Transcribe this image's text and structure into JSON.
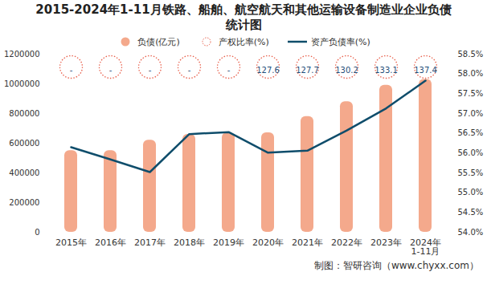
{
  "chart_data": {
    "type": "bar",
    "title": "2015-2024年1-11月铁路、船舶、航空航天和其他运输设备制造业企业负债统计图",
    "caption": "制图：智研咨询（www.chyxx.com）",
    "categories": [
      "2015年",
      "2016年",
      "2017年",
      "2018年",
      "2019年",
      "2020年",
      "2021年",
      "2022年",
      "2023年",
      "2024年\n1-11月"
    ],
    "series": [
      {
        "name": "负债(亿元)",
        "type": "bar",
        "color": "#f4a98c",
        "values": [
          550000,
          550000,
          620000,
          660000,
          670000,
          670000,
          780000,
          880000,
          990000,
          1030000
        ]
      },
      {
        "name": "产权比率(%)",
        "type": "scatter",
        "marker": "circle",
        "line_style": "dotted",
        "color": "#e8604c",
        "data_labels": true,
        "values": [
          null,
          null,
          null,
          null,
          null,
          127.6,
          127.7,
          130.2,
          133.1,
          137.4
        ],
        "value_labels": [
          "-",
          "-",
          "-",
          "-",
          "-",
          "127.6",
          "127.7",
          "130.2",
          "133.1",
          "137.4"
        ]
      },
      {
        "name": "资产负债率(%)",
        "type": "line",
        "axis": "y2",
        "color": "#0f4d6b",
        "values": [
          56.15,
          55.84,
          55.52,
          56.48,
          56.53,
          56.01,
          56.06,
          56.57,
          57.13,
          57.83
        ]
      }
    ],
    "ylim": [
      0,
      1200000
    ],
    "yticks": [
      0,
      200000,
      400000,
      600000,
      800000,
      1000000,
      1200000
    ],
    "y2lim": [
      54,
      58.5
    ],
    "y2ticks": [
      {
        "value": 54,
        "label": "54.0%"
      },
      {
        "value": 54.5,
        "label": "54.5%"
      },
      {
        "value": 55,
        "label": "55.0%"
      },
      {
        "value": 55.5,
        "label": "55.5%"
      },
      {
        "value": 56,
        "label": "56.0%"
      },
      {
        "value": 56.5,
        "label": "56.5%"
      },
      {
        "value": 57,
        "label": "57.0%"
      },
      {
        "value": 57.5,
        "label": "57.5%"
      },
      {
        "value": 58,
        "label": "58.0%"
      },
      {
        "value": 58.5,
        "label": "58.5%"
      }
    ],
    "grid": false,
    "legend": "top"
  }
}
